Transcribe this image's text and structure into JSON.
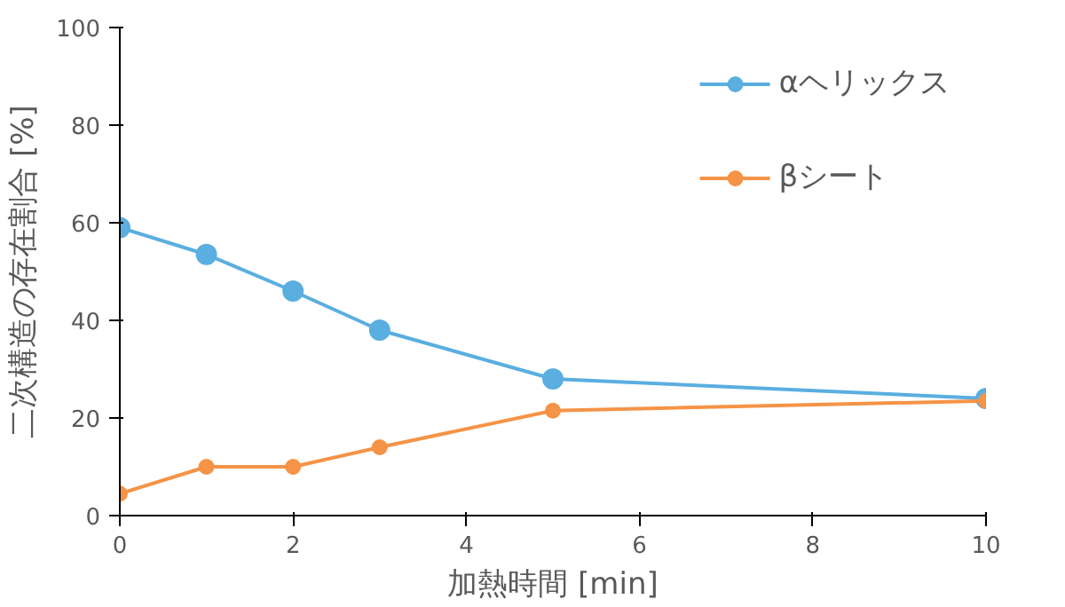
{
  "chart_data": {
    "type": "line",
    "xlabel": "加熱時間 [min]",
    "ylabel": "二次構造の存在割合 [%]",
    "x": [
      0,
      1,
      2,
      3,
      5,
      10
    ],
    "series": [
      {
        "name": "αヘリックス",
        "color": "#5aaee0",
        "values": [
          59,
          53.5,
          46,
          38,
          28,
          24
        ]
      },
      {
        "name": "βシート",
        "color": "#f59346",
        "values": [
          4.5,
          10,
          10,
          14,
          21.5,
          23.5
        ]
      }
    ],
    "xlim": [
      0,
      10
    ],
    "xticks": [
      0,
      2,
      4,
      6,
      8,
      10
    ],
    "ylim": [
      0,
      100
    ],
    "yticks": [
      0,
      20,
      40,
      60,
      80,
      100
    ],
    "grid": false,
    "legend": "top right",
    "marker": "circle",
    "line_style": "solid"
  }
}
